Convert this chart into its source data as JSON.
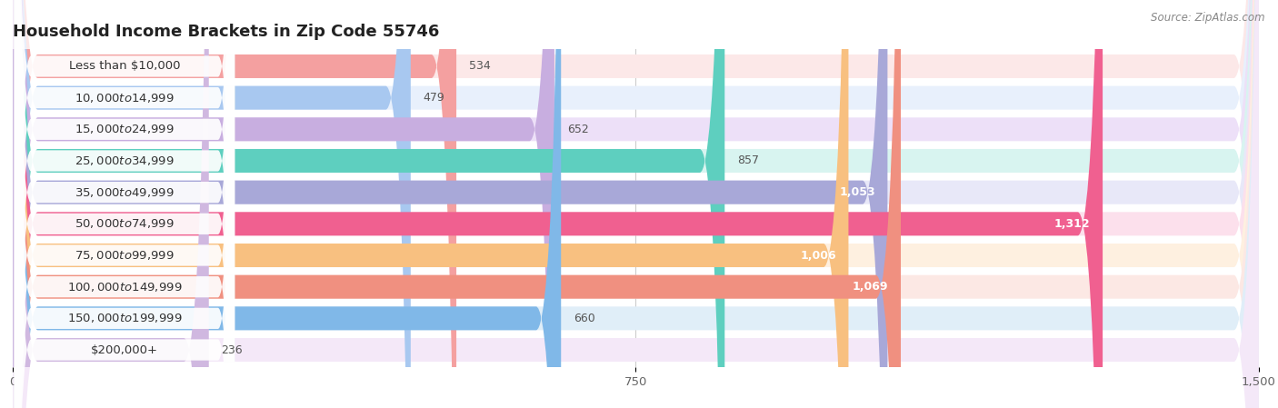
{
  "title": "Household Income Brackets in Zip Code 55746",
  "source": "Source: ZipAtlas.com",
  "categories": [
    "Less than $10,000",
    "$10,000 to $14,999",
    "$15,000 to $24,999",
    "$25,000 to $34,999",
    "$35,000 to $49,999",
    "$50,000 to $74,999",
    "$75,000 to $99,999",
    "$100,000 to $149,999",
    "$150,000 to $199,999",
    "$200,000+"
  ],
  "values": [
    534,
    479,
    652,
    857,
    1053,
    1312,
    1006,
    1069,
    660,
    236
  ],
  "bar_colors": [
    "#f4a0a0",
    "#a8c8f0",
    "#c8aee0",
    "#5ecfbf",
    "#a8a8d8",
    "#f06090",
    "#f8c080",
    "#f09080",
    "#80b8e8",
    "#d0b8e0"
  ],
  "bar_bg_colors": [
    "#fce8e8",
    "#e8f0fc",
    "#ede0f8",
    "#d8f4f0",
    "#e8e8f8",
    "#fce0ec",
    "#fef0e0",
    "#fce8e4",
    "#e0eef8",
    "#f4e8f8"
  ],
  "xlim": [
    0,
    1500
  ],
  "xticks": [
    0,
    750,
    1500
  ],
  "title_fontsize": 13,
  "label_fontsize": 9.5,
  "value_fontsize": 9,
  "background_color": "#f5f5f5"
}
